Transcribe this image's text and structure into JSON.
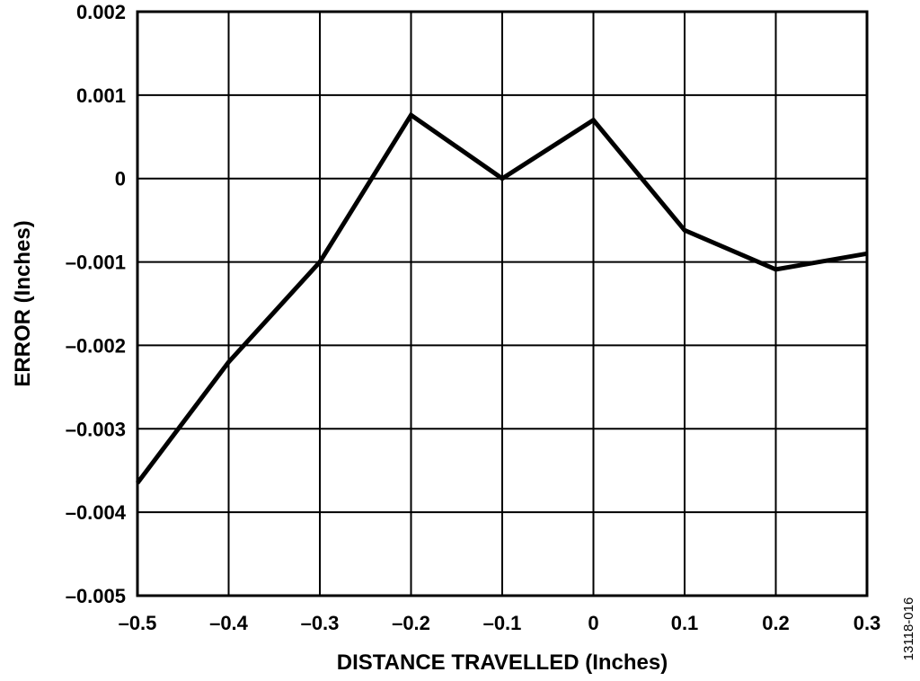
{
  "chart_data": {
    "type": "line",
    "xlabel": "DISTANCE TRAVELLED (Inches)",
    "ylabel": "ERROR (Inches)",
    "xlim": [
      -0.5,
      0.3
    ],
    "ylim": [
      -0.005,
      0.002
    ],
    "grid": true,
    "x_tick_labels": [
      "–0.5",
      "–0.4",
      "–0.3",
      "–0.2",
      "–0.1",
      "0",
      "0.1",
      "0.2",
      "0.3"
    ],
    "x_tick_values": [
      -0.5,
      -0.4,
      -0.3,
      -0.2,
      -0.1,
      0,
      0.1,
      0.2,
      0.3
    ],
    "y_tick_labels": [
      "0.002",
      "0.001",
      "0",
      "–0.001",
      "–0.002",
      "–0.003",
      "–0.004",
      "–0.005"
    ],
    "y_tick_values": [
      0.002,
      0.001,
      0,
      -0.001,
      -0.002,
      -0.003,
      -0.004,
      -0.005
    ],
    "series": [
      {
        "x": [
          -0.5,
          -0.4,
          -0.3,
          -0.2,
          -0.1,
          0,
          0.1,
          0.2,
          0.3
        ],
        "y": [
          -0.00365,
          -0.0022,
          -0.001,
          0.00076,
          0.0,
          0.0007,
          -0.00062,
          -0.00109,
          -0.0009
        ],
        "color": "#000000"
      }
    ],
    "figure_id": "13118-016"
  }
}
